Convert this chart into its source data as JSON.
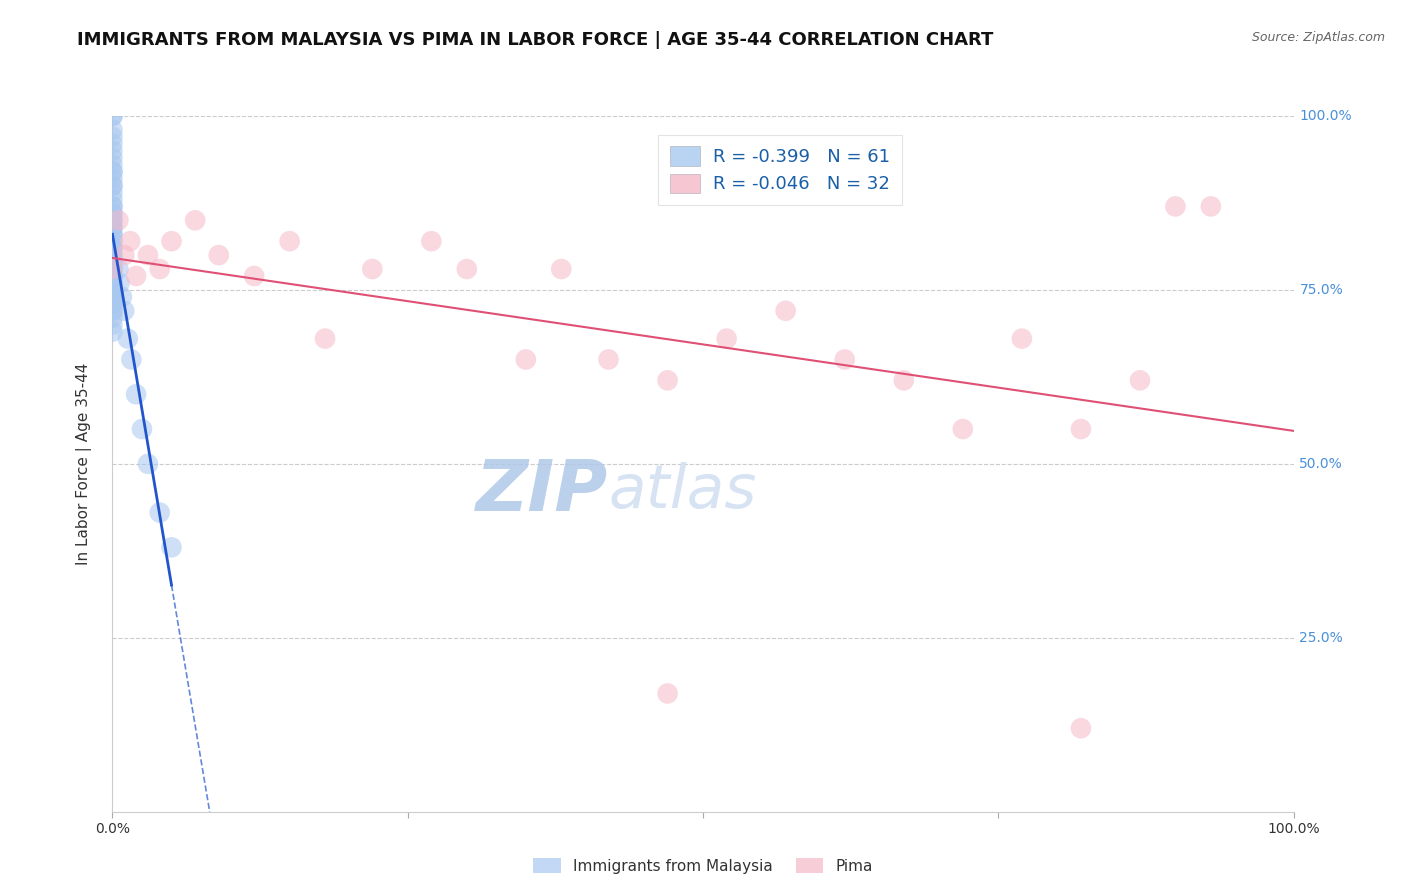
{
  "title": "IMMIGRANTS FROM MALAYSIA VS PIMA IN LABOR FORCE | AGE 35-44 CORRELATION CHART",
  "source": "Source: ZipAtlas.com",
  "ylabel": "In Labor Force | Age 35-44",
  "legend_label_blue": "Immigrants from Malaysia",
  "legend_label_pink": "Pima",
  "r_blue": -0.399,
  "n_blue": 61,
  "r_pink": -0.046,
  "n_pink": 32,
  "blue_color": "#a8c8f0",
  "pink_color": "#f5b8c8",
  "trend_blue_color": "#2255cc",
  "trend_pink_color": "#e05075",
  "blue_points_x": [
    0.0,
    0.0,
    0.0,
    0.0,
    0.0,
    0.0,
    0.0,
    0.0,
    0.0,
    0.0,
    0.0,
    0.0,
    0.0,
    0.0,
    0.0,
    0.0,
    0.0,
    0.0,
    0.0,
    0.0,
    0.0,
    0.0,
    0.0,
    0.0,
    0.0,
    0.0,
    0.0,
    0.0,
    0.0,
    0.0,
    0.0,
    0.0,
    0.0,
    0.0,
    0.0,
    0.0,
    0.0,
    0.0,
    0.0,
    0.0,
    0.0,
    0.0,
    0.0,
    0.0,
    0.0,
    0.0,
    0.0,
    0.0,
    0.0,
    0.0,
    0.005,
    0.006,
    0.008,
    0.01,
    0.013,
    0.016,
    0.02,
    0.025,
    0.03,
    0.04,
    0.05
  ],
  "blue_points_y": [
    1.0,
    1.0,
    0.98,
    0.97,
    0.96,
    0.95,
    0.94,
    0.93,
    0.92,
    0.92,
    0.91,
    0.9,
    0.9,
    0.89,
    0.88,
    0.87,
    0.87,
    0.86,
    0.86,
    0.85,
    0.85,
    0.84,
    0.84,
    0.83,
    0.83,
    0.82,
    0.82,
    0.81,
    0.81,
    0.8,
    0.8,
    0.79,
    0.79,
    0.78,
    0.78,
    0.77,
    0.77,
    0.76,
    0.76,
    0.75,
    0.75,
    0.74,
    0.74,
    0.73,
    0.73,
    0.72,
    0.72,
    0.71,
    0.7,
    0.69,
    0.78,
    0.76,
    0.74,
    0.72,
    0.68,
    0.65,
    0.6,
    0.55,
    0.5,
    0.43,
    0.38
  ],
  "pink_points_x": [
    0.0,
    0.005,
    0.01,
    0.015,
    0.02,
    0.03,
    0.04,
    0.05,
    0.07,
    0.09,
    0.12,
    0.15,
    0.18,
    0.22,
    0.27,
    0.3,
    0.35,
    0.38,
    0.42,
    0.47,
    0.52,
    0.57,
    0.62,
    0.67,
    0.72,
    0.77,
    0.82,
    0.87,
    0.9,
    0.93,
    0.47,
    0.82
  ],
  "pink_points_y": [
    0.78,
    0.85,
    0.8,
    0.82,
    0.77,
    0.8,
    0.78,
    0.82,
    0.85,
    0.8,
    0.77,
    0.82,
    0.68,
    0.78,
    0.82,
    0.78,
    0.65,
    0.78,
    0.65,
    0.62,
    0.68,
    0.72,
    0.65,
    0.62,
    0.55,
    0.68,
    0.55,
    0.62,
    0.87,
    0.87,
    0.17,
    0.12
  ],
  "xmin": 0.0,
  "xmax": 1.0,
  "ymin": 0.0,
  "ymax": 1.0,
  "grid_values": [
    0.25,
    0.5,
    0.75,
    1.0
  ],
  "background_color": "#ffffff",
  "title_fontsize": 13,
  "axis_label_fontsize": 11,
  "tick_label_fontsize": 10,
  "watermark_color": "#ccddf0",
  "watermark_fontsize": 52,
  "right_tick_color": "#4a90d9",
  "legend_text_color": "#1a5fa8"
}
